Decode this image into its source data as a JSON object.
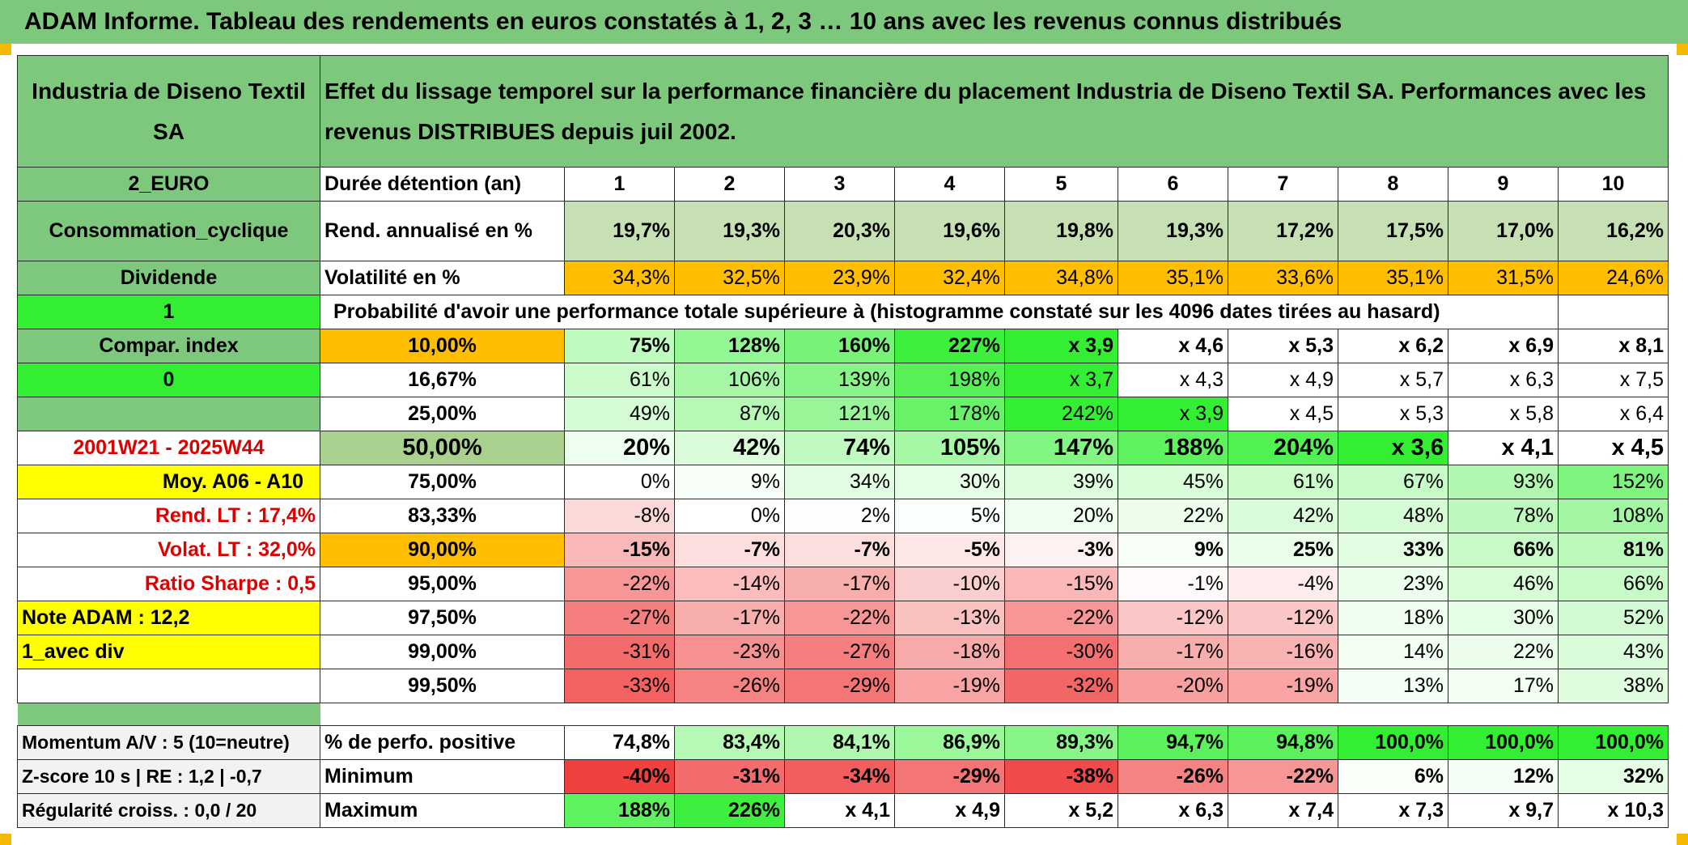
{
  "title": "ADAM Informe. Tableau des rendements en euros constatés à 1, 2, 3 … 10 ans avec les revenus connus distribués",
  "header": {
    "fund": "Industria de Diseno Textil SA",
    "description": "Effet du lissage temporel sur la performance financière du placement Industria de Diseno Textil SA. Performances avec les revenus DISTRIBUES depuis juil 2002."
  },
  "side_labels": {
    "currency": "2_EURO",
    "sector": "Consommation_cyclique",
    "income": "Dividende",
    "mode": "1",
    "compar": "Compar. index",
    "compar_val": "0",
    "blank": "",
    "period": "2001W21 - 2025W44",
    "moy": "Moy. A06 - A10",
    "rend_lt": "Rend. LT :    17,4%",
    "volat_lt": "Volat. LT :    32,0%",
    "sharpe": "Ratio Sharpe :    0,5",
    "note": "Note ADAM : 12,2",
    "div_mode": "1_avec div"
  },
  "row_labels": {
    "duration": "Durée détention (an)",
    "rend": "Rend. annualisé en %",
    "volat": "Volatilité en %",
    "proba": "Probabilité d'avoir une performance totale supérieure à (histogramme constaté sur les 4096 dates tirées au hasard)"
  },
  "years": [
    "1",
    "2",
    "3",
    "4",
    "5",
    "6",
    "7",
    "8",
    "9",
    "10"
  ],
  "rend": [
    "19,7%",
    "19,3%",
    "20,3%",
    "19,6%",
    "19,8%",
    "19,3%",
    "17,2%",
    "17,5%",
    "17,0%",
    "16,2%"
  ],
  "volat": [
    "34,3%",
    "32,5%",
    "23,9%",
    "32,4%",
    "34,8%",
    "35,1%",
    "33,6%",
    "35,1%",
    "31,5%",
    "24,6%"
  ],
  "percentiles": [
    {
      "p": "10,00%",
      "v": [
        "75%",
        "128%",
        "160%",
        "227%",
        "x 3,9",
        "x 4,6",
        "x 5,3",
        "x 6,2",
        "x 6,9",
        "x 8,1"
      ]
    },
    {
      "p": "16,67%",
      "v": [
        "61%",
        "106%",
        "139%",
        "198%",
        "x 3,7",
        "x 4,3",
        "x 4,9",
        "x 5,7",
        "x 6,3",
        "x 7,5"
      ]
    },
    {
      "p": "25,00%",
      "v": [
        "49%",
        "87%",
        "121%",
        "178%",
        "242%",
        "x 3,9",
        "x 4,5",
        "x 5,3",
        "x 5,8",
        "x 6,4"
      ]
    },
    {
      "p": "50,00%",
      "v": [
        "20%",
        "42%",
        "74%",
        "105%",
        "147%",
        "188%",
        "204%",
        "x 3,6",
        "x 4,1",
        "x 4,5"
      ]
    },
    {
      "p": "75,00%",
      "v": [
        "0%",
        "9%",
        "34%",
        "30%",
        "39%",
        "45%",
        "61%",
        "67%",
        "93%",
        "152%"
      ]
    },
    {
      "p": "83,33%",
      "v": [
        "-8%",
        "0%",
        "2%",
        "5%",
        "20%",
        "22%",
        "42%",
        "48%",
        "78%",
        "108%"
      ]
    },
    {
      "p": "90,00%",
      "v": [
        "-15%",
        "-7%",
        "-7%",
        "-5%",
        "-3%",
        "9%",
        "25%",
        "33%",
        "66%",
        "81%"
      ]
    },
    {
      "p": "95,00%",
      "v": [
        "-22%",
        "-14%",
        "-17%",
        "-10%",
        "-15%",
        "-1%",
        "-4%",
        "23%",
        "46%",
        "66%"
      ]
    },
    {
      "p": "97,50%",
      "v": [
        "-27%",
        "-17%",
        "-22%",
        "-13%",
        "-22%",
        "-12%",
        "-12%",
        "18%",
        "30%",
        "52%"
      ]
    },
    {
      "p": "99,00%",
      "v": [
        "-31%",
        "-23%",
        "-27%",
        "-18%",
        "-30%",
        "-17%",
        "-16%",
        "14%",
        "22%",
        "43%"
      ]
    },
    {
      "p": "99,50%",
      "v": [
        "-33%",
        "-26%",
        "-29%",
        "-19%",
        "-32%",
        "-20%",
        "-19%",
        "13%",
        "17%",
        "38%"
      ]
    }
  ],
  "bottom": {
    "momentum": "Momentum A/V : 5 (10=neutre)",
    "zscore": "Z-score 10 s | RE : 1,2 | -0,7",
    "regul": "Régularité croiss. : 0,0 / 20",
    "pos_label": "% de perfo. positive",
    "min_label": "Minimum",
    "max_label": "Maximum",
    "pos": [
      "74,8%",
      "83,4%",
      "84,1%",
      "86,9%",
      "89,3%",
      "94,7%",
      "94,8%",
      "100,0%",
      "100,0%",
      "100,0%"
    ],
    "min": [
      "-40%",
      "-31%",
      "-34%",
      "-29%",
      "-38%",
      "-26%",
      "-22%",
      "6%",
      "12%",
      "32%"
    ],
    "max": [
      "188%",
      "226%",
      "x 4,1",
      "x 4,9",
      "x 5,2",
      "x 6,3",
      "x 7,4",
      "x 7,3",
      "x 9,7",
      "x 10,3"
    ]
  },
  "colors": {
    "header_green": "#7ec87e",
    "bright_green": "#33ee33",
    "orange": "#ffbf00",
    "yellow": "#ffff00",
    "red_text": "#dd0000"
  }
}
